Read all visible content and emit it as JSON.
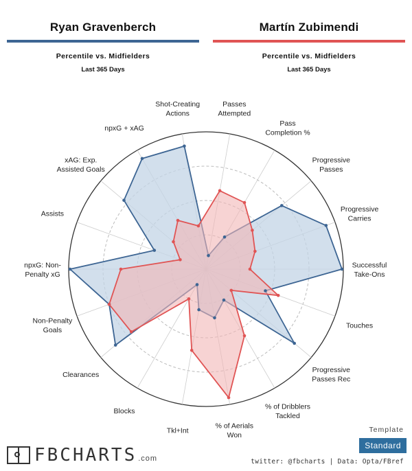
{
  "players": [
    {
      "name": "Ryan Gravenberch",
      "subtitle": "Percentile vs. Midfielders",
      "period": "Last 365 Days",
      "color": "#3d6593",
      "fill": "#c3d4e6"
    },
    {
      "name": "Martín Zubimendi",
      "subtitle": "Percentile vs. Midfielders",
      "period": "Last 365 Days",
      "color": "#e05454",
      "fill": "#f1b5b5"
    }
  ],
  "chart_data": {
    "type": "radar",
    "axis_range": [
      0,
      100
    ],
    "axes": [
      "Passes\nAttempted",
      "Pass\nCompletion %",
      "Progressive\nPasses",
      "Progressive\nCarries",
      "Successful\nTake-Ons",
      "Touches",
      "Progressive\nPasses Rec",
      "% of Dribblers\nTackled",
      "% of Aerials\nWon",
      "Tkl+Int",
      "Blocks",
      "Clearances",
      "Non-Penalty\nGoals",
      "npxG: Non-\nPenalty xG",
      "Assists",
      "xAG: Exp.\nAssisted Goals",
      "npxG + xAG",
      "Shot-Creating\nActions"
    ],
    "series": [
      {
        "name": "Ryan Gravenberch",
        "values": [
          10,
          27,
          72,
          93,
          99,
          46,
          84,
          26,
          36,
          30,
          13,
          86,
          75,
          99,
          40,
          78,
          93,
          91
        ]
      },
      {
        "name": "Martín Zubimendi",
        "values": [
          58,
          56,
          44,
          38,
          32,
          56,
          24,
          56,
          95,
          60,
          25,
          71,
          75,
          62,
          20,
          31,
          41,
          32
        ]
      }
    ]
  },
  "footer": {
    "logo_text": "FBCHARTS",
    "logo_suffix": ".com",
    "template_label": "Template",
    "template_value": "Standard",
    "credits": "twitter: @fbcharts | Data: Opta/FBref"
  }
}
